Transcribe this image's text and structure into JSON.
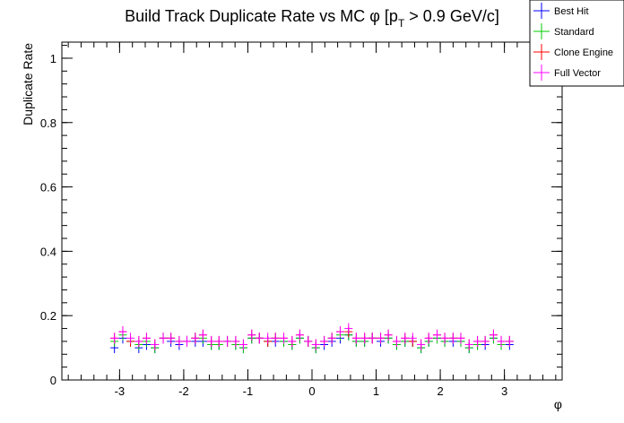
{
  "chart_data": {
    "type": "scatter",
    "title": {
      "main": "Build Track Duplicate Rate vs MC ",
      "phi": "φ",
      "bracket_open": " [p",
      "subscript": "T",
      "rest": " > 0.9 GeV/c]"
    },
    "xlabel": "φ",
    "ylabel": "Duplicate Rate",
    "xlim": [
      -3.9,
      3.9
    ],
    "ylim": [
      0,
      1.05
    ],
    "x_ticks": [
      -3,
      -2,
      -1,
      0,
      1,
      2,
      3
    ],
    "y_ticks": [
      0,
      0.2,
      0.4,
      0.6,
      0.8,
      1
    ],
    "y_tick_labels": [
      "0",
      "0.2",
      "0.4",
      "0.6",
      "0.8",
      "1"
    ],
    "x_bin_width": 0.1257,
    "legend_position": "top-right",
    "x": [
      -3.08,
      -2.95,
      -2.83,
      -2.7,
      -2.58,
      -2.45,
      -2.32,
      -2.2,
      -2.07,
      -1.95,
      -1.82,
      -1.7,
      -1.57,
      -1.45,
      -1.32,
      -1.19,
      -1.07,
      -0.94,
      -0.82,
      -0.69,
      -0.57,
      -0.44,
      -0.31,
      -0.19,
      -0.06,
      0.06,
      0.19,
      0.31,
      0.44,
      0.57,
      0.69,
      0.82,
      0.94,
      1.07,
      1.19,
      1.32,
      1.45,
      1.57,
      1.7,
      1.82,
      1.95,
      2.07,
      2.2,
      2.32,
      2.45,
      2.58,
      2.7,
      2.83,
      2.95,
      3.08
    ],
    "series": [
      {
        "name": "Best Hit",
        "color": "#0000ff",
        "values": [
          0.1,
          0.13,
          0.12,
          0.1,
          0.11,
          0.1,
          0.13,
          0.12,
          0.11,
          0.12,
          0.12,
          0.12,
          0.11,
          0.11,
          0.12,
          0.11,
          0.1,
          0.13,
          0.13,
          0.12,
          0.12,
          0.12,
          0.11,
          0.13,
          0.12,
          0.1,
          0.11,
          0.12,
          0.13,
          0.14,
          0.12,
          0.12,
          0.13,
          0.12,
          0.13,
          0.11,
          0.12,
          0.12,
          0.1,
          0.12,
          0.13,
          0.12,
          0.12,
          0.12,
          0.1,
          0.11,
          0.11,
          0.13,
          0.11,
          0.11
        ]
      },
      {
        "name": "Standard",
        "color": "#00cc00",
        "values": [
          0.12,
          0.14,
          0.12,
          0.11,
          0.12,
          0.1,
          0.13,
          0.13,
          0.12,
          0.12,
          0.13,
          0.13,
          0.11,
          0.11,
          0.12,
          0.11,
          0.1,
          0.13,
          0.13,
          0.12,
          0.13,
          0.12,
          0.11,
          0.13,
          0.12,
          0.1,
          0.12,
          0.13,
          0.14,
          0.14,
          0.12,
          0.12,
          0.13,
          0.13,
          0.13,
          0.11,
          0.12,
          0.12,
          0.1,
          0.12,
          0.13,
          0.12,
          0.13,
          0.12,
          0.1,
          0.11,
          0.12,
          0.13,
          0.11,
          0.12
        ]
      },
      {
        "name": "Clone Engine",
        "color": "#ff0000",
        "values": [
          0.13,
          0.15,
          0.12,
          0.12,
          0.13,
          0.11,
          0.13,
          0.13,
          0.12,
          0.12,
          0.13,
          0.14,
          0.12,
          0.12,
          0.12,
          0.12,
          0.11,
          0.14,
          0.13,
          0.12,
          0.13,
          0.13,
          0.12,
          0.14,
          0.12,
          0.11,
          0.12,
          0.13,
          0.15,
          0.15,
          0.13,
          0.13,
          0.13,
          0.13,
          0.14,
          0.12,
          0.13,
          0.12,
          0.11,
          0.13,
          0.14,
          0.13,
          0.13,
          0.13,
          0.11,
          0.12,
          0.12,
          0.14,
          0.12,
          0.12
        ]
      },
      {
        "name": "Full Vector",
        "color": "#ff00ff",
        "values": [
          0.13,
          0.15,
          0.13,
          0.12,
          0.13,
          0.11,
          0.13,
          0.13,
          0.12,
          0.12,
          0.13,
          0.14,
          0.12,
          0.12,
          0.12,
          0.12,
          0.11,
          0.14,
          0.13,
          0.13,
          0.13,
          0.13,
          0.12,
          0.14,
          0.12,
          0.11,
          0.12,
          0.13,
          0.15,
          0.16,
          0.13,
          0.13,
          0.13,
          0.13,
          0.14,
          0.12,
          0.13,
          0.13,
          0.11,
          0.13,
          0.14,
          0.13,
          0.13,
          0.13,
          0.11,
          0.12,
          0.12,
          0.14,
          0.12,
          0.12
        ]
      }
    ]
  }
}
